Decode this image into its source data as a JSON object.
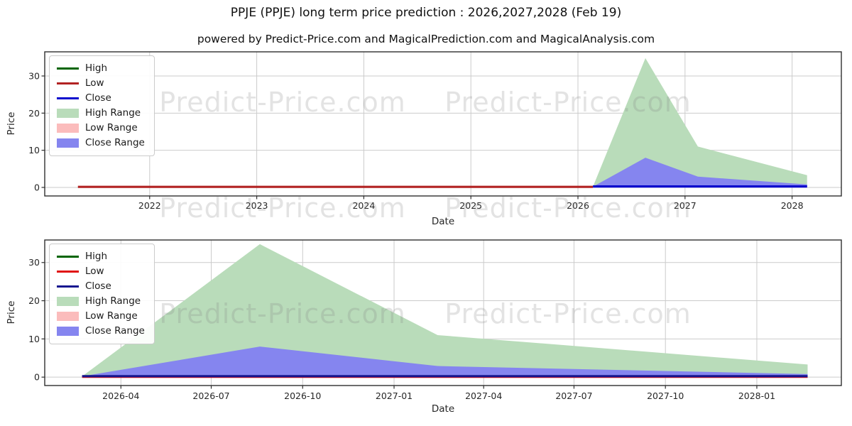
{
  "title": "PPJE (PPJE) long term price prediction : 2026,2027,2028 (Feb 19)",
  "subtitle": "powered by Predict-Price.com and MagicalPrediction.com and MagicalAnalysis.com",
  "watermark": {
    "text": "Predict-Price.com"
  },
  "colors": {
    "grid": "#cbcbcb",
    "spine": "#2f2f2f",
    "tick_text": "#262626",
    "high_line": "#006400",
    "low_line_top": "#b22222",
    "low_line_bottom": "#e01313",
    "close_line_top": "#0a0acd",
    "close_line_bottom": "#16168f",
    "high_range_fill": "#b9dcba",
    "low_range_fill": "#fbbcbc",
    "close_range_fill": "#8585ef"
  },
  "chart_data": [
    {
      "type": "area",
      "name": "long-term-chart",
      "title": "",
      "xlabel": "Date",
      "ylabel": "Price",
      "x_range": [
        2021.02,
        2028.46
      ],
      "y_range": [
        -2.3,
        36.5
      ],
      "grid": true,
      "legend_position": "upper left",
      "x_ticks": [
        {
          "v": 2022,
          "label": "2022"
        },
        {
          "v": 2023,
          "label": "2023"
        },
        {
          "v": 2024,
          "label": "2024"
        },
        {
          "v": 2025,
          "label": "2025"
        },
        {
          "v": 2026,
          "label": "2026"
        },
        {
          "v": 2027,
          "label": "2027"
        },
        {
          "v": 2028,
          "label": "2028"
        }
      ],
      "y_ticks": [
        {
          "v": 0,
          "label": "0"
        },
        {
          "v": 10,
          "label": "10"
        },
        {
          "v": 20,
          "label": "20"
        },
        {
          "v": 30,
          "label": "30"
        }
      ],
      "legend": [
        {
          "label": "High",
          "swatch": "line",
          "color": "#006400"
        },
        {
          "label": "Low",
          "swatch": "line",
          "color": "#b22222"
        },
        {
          "label": "Close",
          "swatch": "line",
          "color": "#0a0acd"
        },
        {
          "label": "High Range",
          "swatch": "patch",
          "color": "#b9dcba"
        },
        {
          "label": "Low Range",
          "swatch": "patch",
          "color": "#fbbcbc"
        },
        {
          "label": "Close Range",
          "swatch": "patch",
          "color": "#8585ef"
        }
      ],
      "series": [
        {
          "name": "High Range",
          "kind": "band",
          "color": "#b9dcba",
          "upper": [
            [
              2026.14,
              0.2
            ],
            [
              2026.63,
              34.8
            ],
            [
              2027.12,
              11.0
            ],
            [
              2028.14,
              3.3
            ]
          ],
          "lower": [
            [
              2026.14,
              0.1
            ],
            [
              2028.14,
              0.1
            ]
          ]
        },
        {
          "name": "Close Range",
          "kind": "band",
          "color": "#8585ef",
          "upper": [
            [
              2026.14,
              0.2
            ],
            [
              2026.63,
              8.0
            ],
            [
              2027.12,
              2.9
            ],
            [
              2028.14,
              0.8
            ]
          ],
          "lower": [
            [
              2026.14,
              0.1
            ],
            [
              2028.14,
              0.1
            ]
          ]
        },
        {
          "name": "Low",
          "kind": "line",
          "color": "#b22222",
          "width": 3.2,
          "points": [
            [
              2021.33,
              0.15
            ],
            [
              2026.14,
              0.15
            ]
          ]
        },
        {
          "name": "Close",
          "kind": "line",
          "color": "#0a0acd",
          "width": 3.2,
          "points": [
            [
              2026.14,
              0.25
            ],
            [
              2028.14,
              0.25
            ]
          ]
        }
      ]
    },
    {
      "type": "area",
      "name": "prediction-detail-chart",
      "title": "",
      "xlabel": "Date",
      "ylabel": "Price",
      "x_range": [
        2026.037,
        2028.233
      ],
      "y_range": [
        -2.2,
        35.9
      ],
      "grid": true,
      "legend_position": "upper left",
      "x_ticks": [
        {
          "v": 2026.247,
          "label": "2026-04"
        },
        {
          "v": 2026.496,
          "label": "2026-07"
        },
        {
          "v": 2026.748,
          "label": "2026-10"
        },
        {
          "v": 2027.0,
          "label": "2027-01"
        },
        {
          "v": 2027.247,
          "label": "2027-04"
        },
        {
          "v": 2027.496,
          "label": "2027-07"
        },
        {
          "v": 2027.748,
          "label": "2027-10"
        },
        {
          "v": 2028.0,
          "label": "2028-01"
        }
      ],
      "y_ticks": [
        {
          "v": 0,
          "label": "0"
        },
        {
          "v": 10,
          "label": "10"
        },
        {
          "v": 20,
          "label": "20"
        },
        {
          "v": 30,
          "label": "30"
        }
      ],
      "legend": [
        {
          "label": "High",
          "swatch": "line",
          "color": "#006400"
        },
        {
          "label": "Low",
          "swatch": "line",
          "color": "#e01313"
        },
        {
          "label": "Close",
          "swatch": "line",
          "color": "#16168f"
        },
        {
          "label": "High Range",
          "swatch": "patch",
          "color": "#b9dcba"
        },
        {
          "label": "Low Range",
          "swatch": "patch",
          "color": "#fbbcbc"
        },
        {
          "label": "Close Range",
          "swatch": "patch",
          "color": "#8585ef"
        }
      ],
      "series": [
        {
          "name": "High Range",
          "kind": "band",
          "color": "#b9dcba",
          "upper": [
            [
              2026.14,
              0.2
            ],
            [
              2026.63,
              34.8
            ],
            [
              2027.12,
              11.0
            ],
            [
              2028.14,
              3.3
            ]
          ],
          "lower": [
            [
              2026.14,
              0.1
            ],
            [
              2028.14,
              0.1
            ]
          ]
        },
        {
          "name": "Close Range",
          "kind": "band",
          "color": "#8585ef",
          "upper": [
            [
              2026.14,
              0.2
            ],
            [
              2026.63,
              8.0
            ],
            [
              2027.12,
              2.9
            ],
            [
              2028.14,
              0.8
            ]
          ],
          "lower": [
            [
              2026.14,
              0.1
            ],
            [
              2028.14,
              0.1
            ]
          ]
        },
        {
          "name": "Low",
          "kind": "line",
          "color": "#e01313",
          "width": 3.2,
          "points": [
            [
              2026.14,
              0.1
            ],
            [
              2028.14,
              0.1
            ]
          ]
        },
        {
          "name": "Close",
          "kind": "line",
          "color": "#16168f",
          "width": 3.2,
          "points": [
            [
              2026.14,
              0.25
            ],
            [
              2028.14,
              0.25
            ]
          ]
        }
      ]
    }
  ]
}
